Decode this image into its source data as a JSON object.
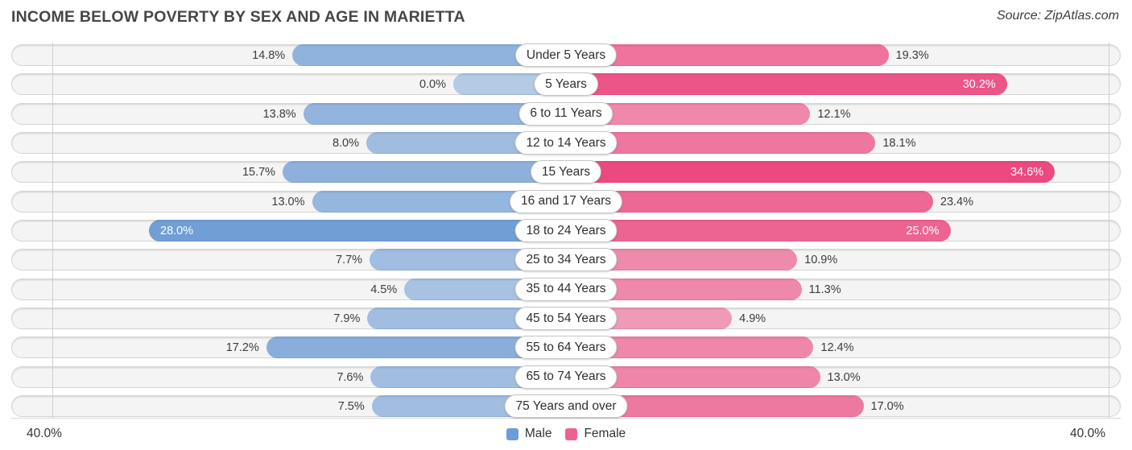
{
  "header": {
    "title": "INCOME BELOW POVERTY BY SEX AND AGE IN MARIETTA",
    "source": "Source: ZipAtlas.com"
  },
  "axis": {
    "left_label": "40.0%",
    "right_label": "40.0%",
    "max_percent": 40
  },
  "legend": [
    {
      "label": "Male",
      "color": "#6d9cd9"
    },
    {
      "label": "Female",
      "color": "#ee6291"
    }
  ],
  "chart_data": {
    "type": "bar",
    "subtype": "diverging-horizontal-pyramid",
    "title": "INCOME BELOW POVERTY BY SEX AND AGE IN MARIETTA",
    "categories": [
      "Under 5 Years",
      "5 Years",
      "6 to 11 Years",
      "12 to 14 Years",
      "15 Years",
      "16 and 17 Years",
      "18 to 24 Years",
      "25 to 34 Years",
      "35 to 44 Years",
      "45 to 54 Years",
      "55 to 64 Years",
      "65 to 74 Years",
      "75 Years and over"
    ],
    "series": [
      {
        "name": "Male",
        "base_color": "#3b7bc9",
        "direction": "left",
        "values": [
          14.8,
          0.0,
          13.8,
          8.0,
          15.7,
          13.0,
          28.0,
          7.7,
          4.5,
          7.9,
          17.2,
          7.6,
          7.5
        ]
      },
      {
        "name": "Female",
        "base_color": "#e91e63",
        "direction": "right",
        "values": [
          19.3,
          30.2,
          12.1,
          18.1,
          34.6,
          23.4,
          25.0,
          10.9,
          11.3,
          4.9,
          12.4,
          13.0,
          17.0
        ]
      }
    ],
    "value_label_format": "{value}%",
    "xlim": [
      -40,
      40
    ],
    "axis_tick_labels": [
      "40.0%",
      "40.0%"
    ],
    "legend_position": "bottom-center",
    "grid": "subtle-vertical-edge-lines"
  }
}
